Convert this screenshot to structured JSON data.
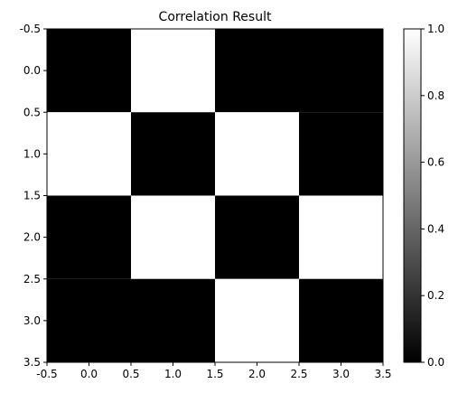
{
  "chart_data": {
    "type": "heatmap",
    "title": "Correlation Result",
    "xlabel": "",
    "ylabel": "",
    "colormap": "gray",
    "colors": {
      "low": "#000000",
      "high": "#ffffff",
      "axis": "#000000"
    },
    "matrix": [
      [
        0,
        1,
        0,
        0
      ],
      [
        1,
        0,
        1,
        0
      ],
      [
        0,
        1,
        0,
        1
      ],
      [
        0,
        0,
        1,
        0
      ]
    ],
    "xlim": [
      -0.5,
      3.5
    ],
    "ylim": [
      3.5,
      -0.5
    ],
    "xticks": [
      "-0.5",
      "0.0",
      "0.5",
      "1.0",
      "1.5",
      "2.0",
      "2.5",
      "3.0",
      "3.5"
    ],
    "yticks": [
      "-0.5",
      "0.0",
      "0.5",
      "1.0",
      "1.5",
      "2.0",
      "2.5",
      "3.0",
      "3.5"
    ],
    "colorbar": {
      "range": [
        0.0,
        1.0
      ],
      "ticks": [
        "0.0",
        "0.2",
        "0.4",
        "0.6",
        "0.8",
        "1.0"
      ]
    },
    "grid": false,
    "legend": "none"
  }
}
